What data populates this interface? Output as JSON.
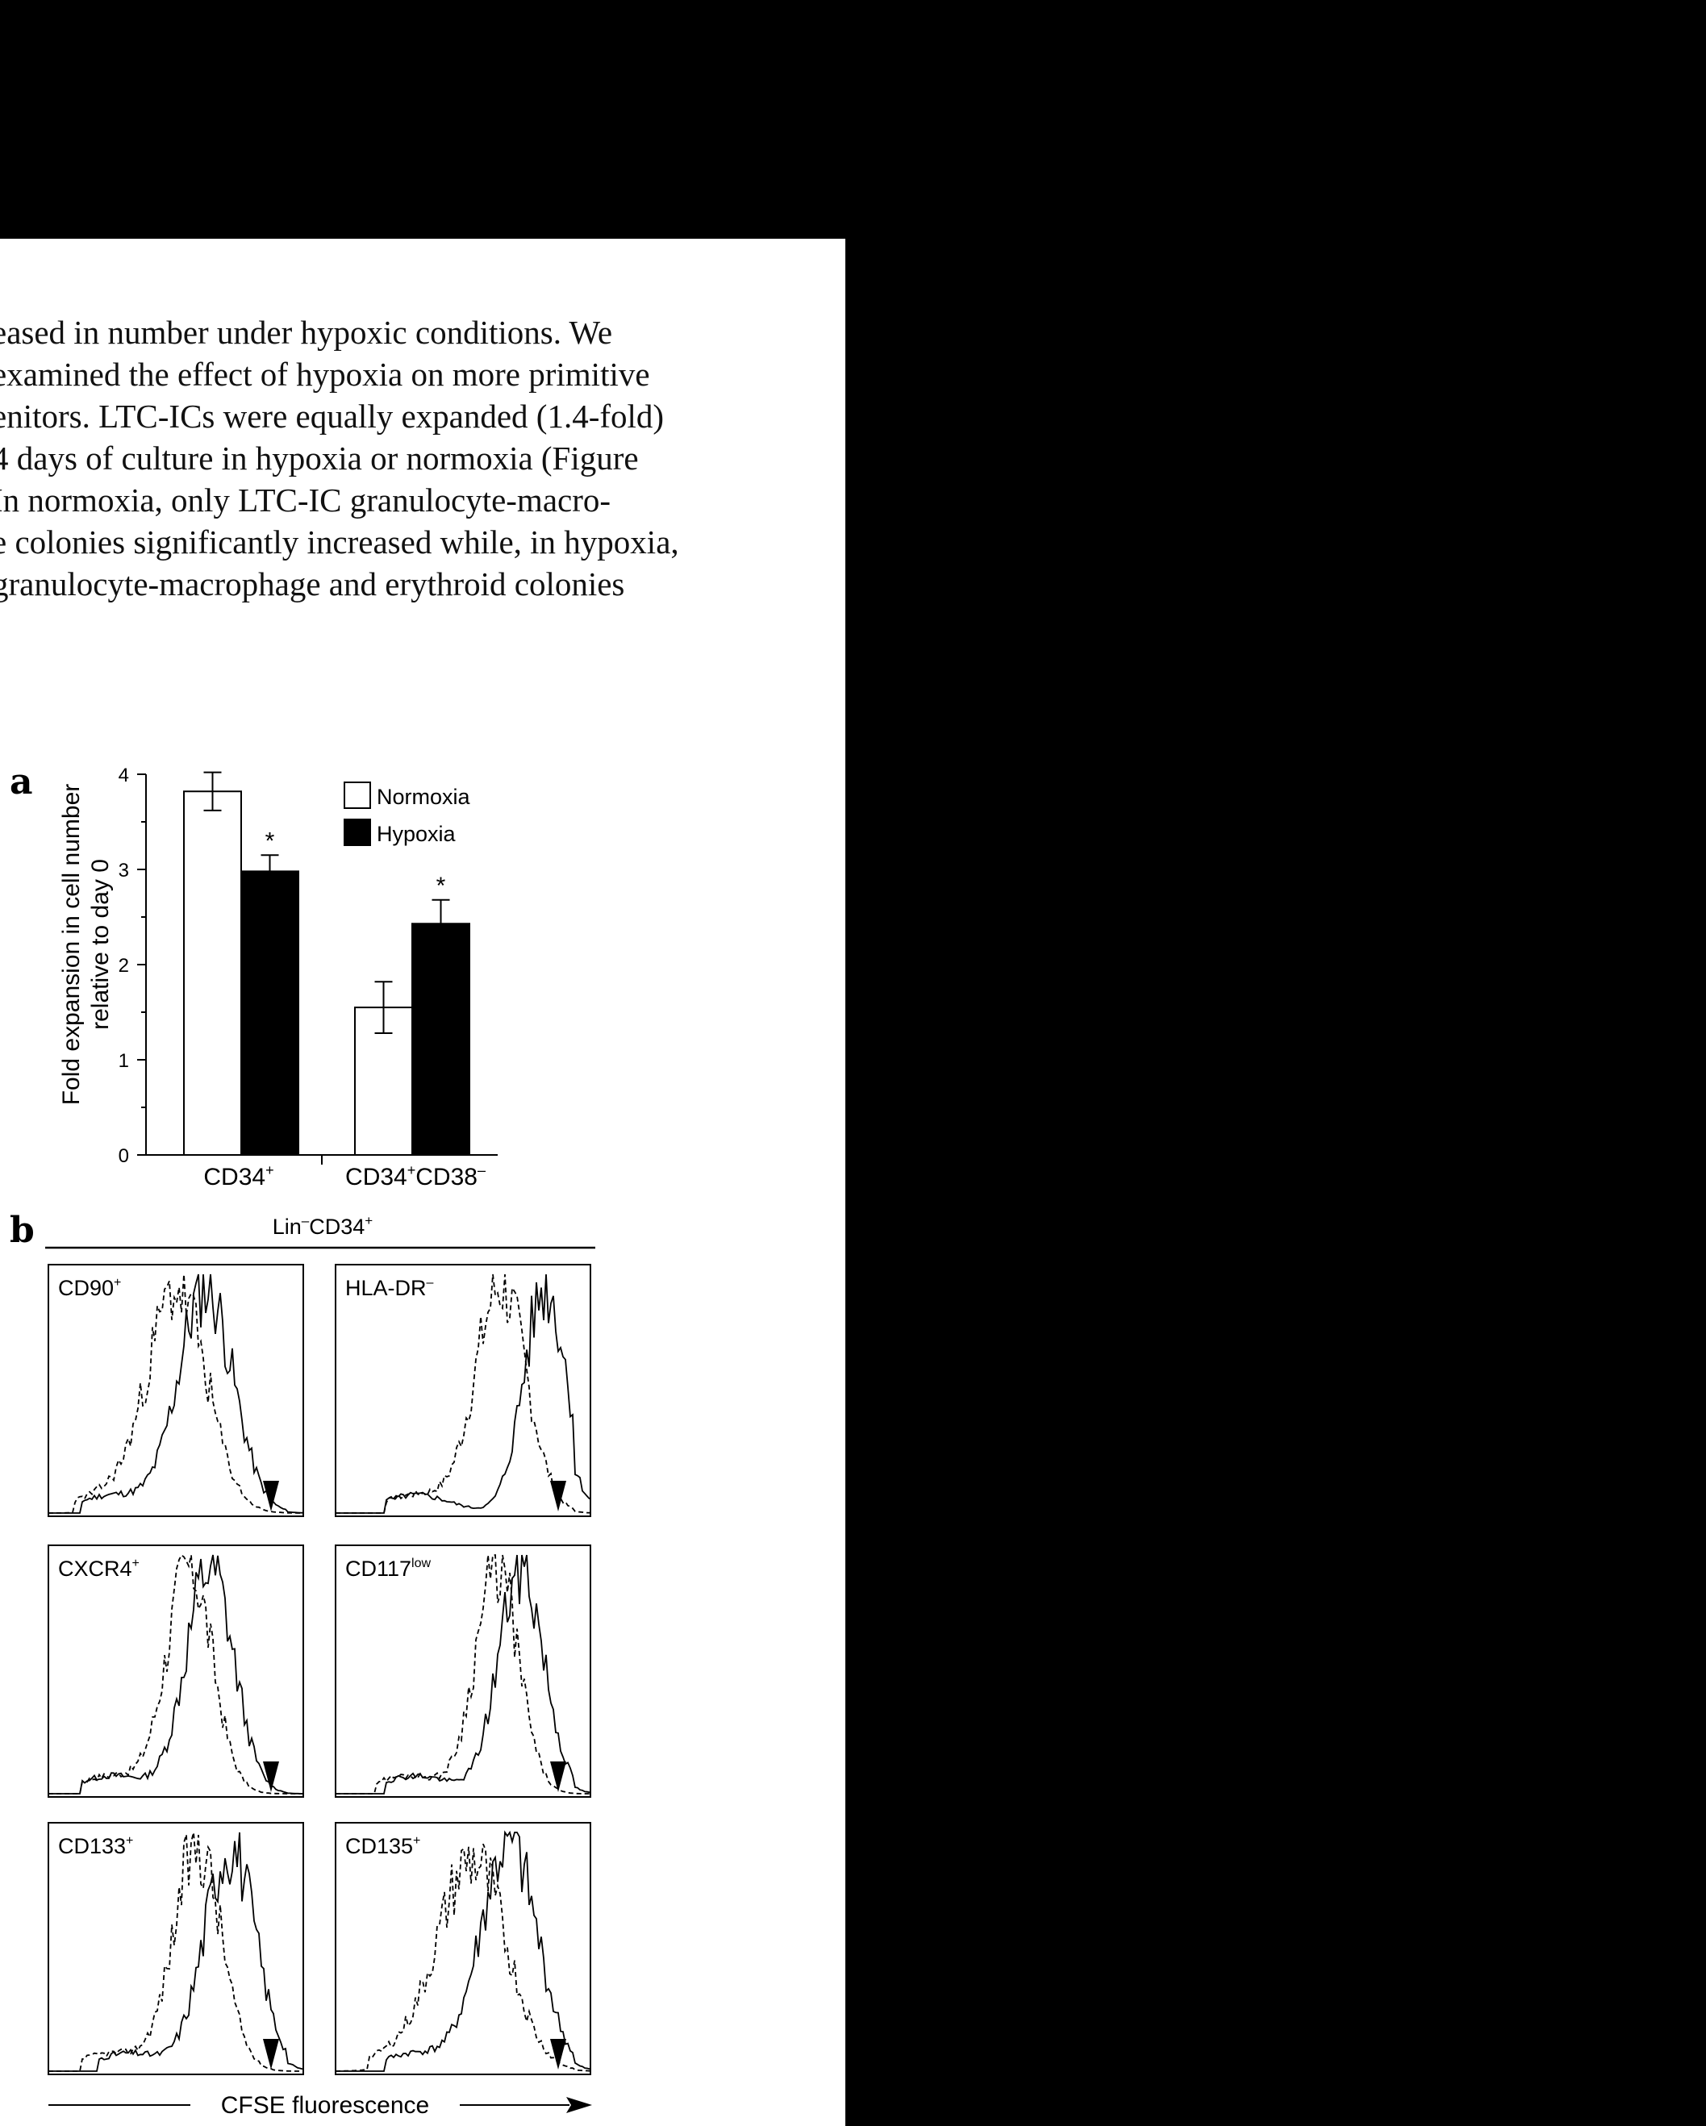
{
  "paragraph": {
    "lines": [
      "eased in number under hypoxic conditions. We",
      "examined the effect of hypoxia on more primitive",
      "enitors. LTC-ICs were equally expanded (1.4-fold)",
      "4 days of culture in hypoxia or normoxia (Figure",
      "In normoxia, only LTC-IC granulocyte-macro-",
      "e colonies significantly increased while, in hypoxia,",
      "granulocyte-macrophage and erythroid colonies"
    ]
  },
  "panel_a": {
    "letter": "a",
    "ylabel_line1": "Fold expansion in cell number",
    "ylabel_line2": "relative to day 0",
    "yticks": [
      "0",
      "1",
      "2",
      "3",
      "4"
    ],
    "legend": {
      "normoxia": "Normoxia",
      "hypoxia": "Hypoxia"
    },
    "group1_label": "CD34",
    "group1_sup": "+",
    "group2_label_a": "CD34",
    "group2_sup_a": "+",
    "group2_label_b": "CD38",
    "group2_sup_b": "–",
    "sig_mark": "*"
  },
  "panel_b": {
    "letter": "b",
    "header": "Lin",
    "header_sup1": "–",
    "header_mid": "CD34",
    "header_sup2": "+",
    "x_axis_label": "CFSE fluorescence",
    "histograms": [
      {
        "label": "CD90",
        "sup": "+"
      },
      {
        "label": "HLA-DR",
        "sup": "–"
      },
      {
        "label": "CXCR4",
        "sup": "+"
      },
      {
        "label": "CD117",
        "sup": "low"
      },
      {
        "label": "CD133",
        "sup": "+"
      },
      {
        "label": "CD135",
        "sup": "+"
      }
    ]
  },
  "chart_data": [
    {
      "type": "bar",
      "title": "",
      "xlabel": "",
      "ylabel": "Fold expansion in cell number relative to day 0",
      "ylim": [
        0,
        4
      ],
      "categories": [
        "CD34+",
        "CD34+CD38–"
      ],
      "series": [
        {
          "name": "Normoxia",
          "values": [
            3.82,
            1.55
          ],
          "errors": [
            0.2,
            0.27
          ],
          "color": "#ffffff"
        },
        {
          "name": "Hypoxia",
          "values": [
            2.98,
            2.43
          ],
          "errors": [
            0.17,
            0.25
          ],
          "color": "#000000"
        }
      ],
      "significance": [
        "*",
        "*"
      ],
      "legend_position": "top-right",
      "grid": false
    }
  ]
}
